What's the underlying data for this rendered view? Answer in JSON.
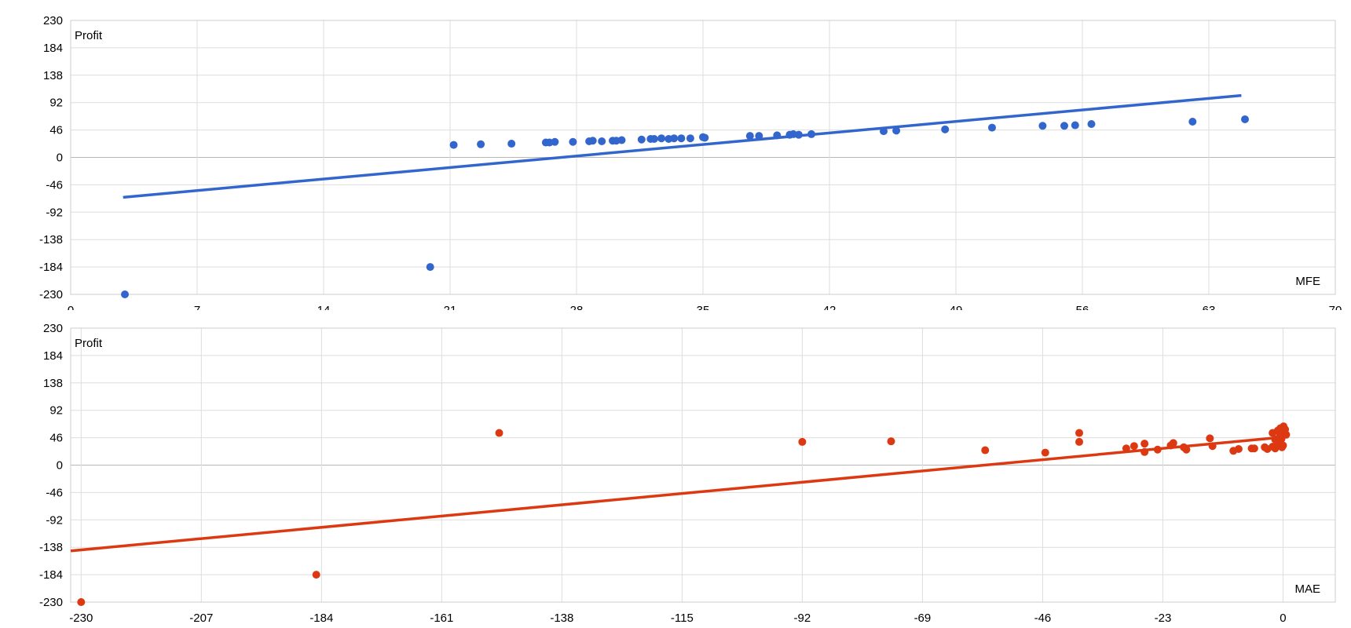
{
  "chart_data": [
    {
      "type": "scatter",
      "xlabel": "MFE",
      "ylabel": "Profit",
      "xlim": [
        0,
        70
      ],
      "ylim": [
        -230,
        230
      ],
      "x_ticks": [
        0,
        7,
        14,
        21,
        28,
        35,
        42,
        49,
        56,
        63,
        70
      ],
      "y_ticks": [
        230,
        184,
        138,
        92,
        46,
        0,
        -46,
        -92,
        -138,
        -184,
        -230
      ],
      "grid": true,
      "color": "#3366cc",
      "trendline": {
        "x": [
          2.9,
          64.8
        ],
        "y": [
          -67,
          104
        ]
      },
      "points": [
        [
          3,
          -230
        ],
        [
          19.9,
          -184
        ],
        [
          21.2,
          21
        ],
        [
          22.7,
          22
        ],
        [
          24.4,
          23
        ],
        [
          26.3,
          25
        ],
        [
          26.5,
          25
        ],
        [
          26.8,
          26
        ],
        [
          27.8,
          26
        ],
        [
          28.7,
          27
        ],
        [
          28.9,
          28
        ],
        [
          29.4,
          27
        ],
        [
          30.0,
          28
        ],
        [
          30.2,
          28
        ],
        [
          30.5,
          29
        ],
        [
          31.6,
          30
        ],
        [
          32.1,
          31
        ],
        [
          32.3,
          31
        ],
        [
          32.7,
          32
        ],
        [
          33.1,
          31
        ],
        [
          33.4,
          32
        ],
        [
          33.8,
          32
        ],
        [
          34.3,
          32
        ],
        [
          35.0,
          34
        ],
        [
          35.1,
          33
        ],
        [
          37.6,
          36
        ],
        [
          38.1,
          36
        ],
        [
          39.1,
          37
        ],
        [
          39.8,
          38
        ],
        [
          40.0,
          39
        ],
        [
          40.3,
          38
        ],
        [
          41.0,
          39
        ],
        [
          45.0,
          44
        ],
        [
          45.7,
          45
        ],
        [
          48.4,
          47
        ],
        [
          51.0,
          50
        ],
        [
          53.8,
          53
        ],
        [
          55.0,
          53
        ],
        [
          55.6,
          54
        ],
        [
          56.5,
          56
        ],
        [
          62.1,
          60
        ],
        [
          65.0,
          64
        ]
      ]
    },
    {
      "type": "scatter",
      "xlabel": "MAE",
      "ylabel": "Profit",
      "xlim": [
        -232,
        10
      ],
      "ylim": [
        -230,
        230
      ],
      "x_ticks": [
        -230,
        -207,
        -184,
        -161,
        -138,
        -115,
        -92,
        -69,
        -46,
        -23,
        0
      ],
      "y_ticks": [
        230,
        184,
        138,
        92,
        46,
        0,
        -46,
        -92,
        -138,
        -184,
        -230
      ],
      "grid": true,
      "color": "#dc3912",
      "trendline": {
        "x": [
          -232,
          0
        ],
        "y": [
          -144,
          47
        ]
      },
      "points": [
        [
          -230,
          -230
        ],
        [
          -185,
          -184
        ],
        [
          -150,
          54
        ],
        [
          -92,
          39
        ],
        [
          -75,
          40
        ],
        [
          -57,
          25
        ],
        [
          -45.5,
          21
        ],
        [
          -39,
          39
        ],
        [
          -39,
          54
        ],
        [
          -30,
          28
        ],
        [
          -28.5,
          32
        ],
        [
          -26.5,
          36
        ],
        [
          -26.5,
          22
        ],
        [
          -24,
          26
        ],
        [
          -21.5,
          33
        ],
        [
          -21,
          37
        ],
        [
          -19,
          30
        ],
        [
          -18.5,
          26
        ],
        [
          -14,
          45
        ],
        [
          -13.5,
          32
        ],
        [
          -9.5,
          24
        ],
        [
          -8.5,
          27
        ],
        [
          -6,
          28
        ],
        [
          -5.5,
          28
        ],
        [
          -3.5,
          30
        ],
        [
          -3,
          27
        ],
        [
          -2,
          31
        ],
        [
          -2,
          54
        ],
        [
          -1.5,
          28
        ],
        [
          -1.5,
          43
        ],
        [
          -1,
          58
        ],
        [
          -1,
          40
        ],
        [
          -0.8,
          35
        ],
        [
          -0.6,
          49
        ],
        [
          -0.5,
          62
        ],
        [
          -0.3,
          44
        ],
        [
          -0.2,
          30
        ],
        [
          0,
          57
        ],
        [
          0,
          33
        ],
        [
          0.1,
          65
        ],
        [
          0.4,
          60
        ],
        [
          0.6,
          51
        ]
      ]
    }
  ]
}
